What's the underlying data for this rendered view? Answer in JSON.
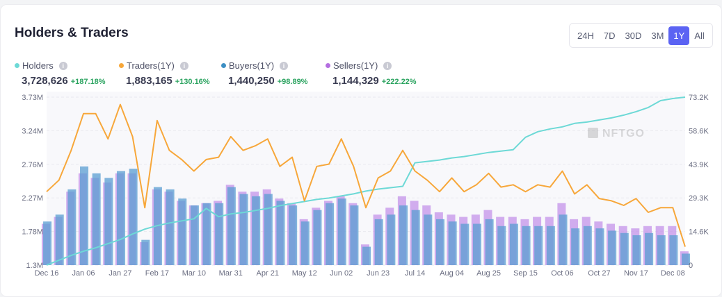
{
  "header": {
    "title": "Holders & Traders"
  },
  "ranges": {
    "options": [
      "24H",
      "7D",
      "30D",
      "3M",
      "1Y",
      "All"
    ],
    "selected": "1Y"
  },
  "stats": [
    {
      "label": "Holders",
      "value": "3,728,626",
      "change": "+187.18%",
      "color": "#6dd9d6"
    },
    {
      "label": "Traders(1Y)",
      "value": "1,883,165",
      "change": "+130.16%",
      "color": "#f7a73a"
    },
    {
      "label": "Buyers(1Y)",
      "value": "1,440,250",
      "change": "+98.89%",
      "color": "#3d8fc4"
    },
    {
      "label": "Sellers(1Y)",
      "value": "1,144,329",
      "change": "+222.22%",
      "color": "#b46ee0"
    }
  ],
  "watermark": "NFTGO",
  "chart_data": {
    "type": "line+bar",
    "x_tick_labels": [
      "Dec 16",
      "Jan 06",
      "Jan 27",
      "Feb 17",
      "Mar 10",
      "Mar 31",
      "Apr 21",
      "May 12",
      "Jun 02",
      "Jun 23",
      "Jul 14",
      "Aug 04",
      "Aug 25",
      "Sep 15",
      "Oct 06",
      "Oct 27",
      "Nov 17",
      "Dec 08"
    ],
    "y_left": {
      "ticks": [
        "1.3M",
        "1.78M",
        "2.27M",
        "2.76M",
        "3.24M",
        "3.73M"
      ],
      "range": [
        1.3,
        3.73
      ],
      "unit": "M"
    },
    "y_right": {
      "ticks": [
        "0",
        "14.6K",
        "29.3K",
        "43.9K",
        "58.6K",
        "73.2K"
      ],
      "range": [
        0,
        73.2
      ],
      "unit": "K"
    },
    "grid": true,
    "x_interval": "weekly",
    "series": [
      {
        "name": "Holders",
        "type": "line",
        "axis": "left",
        "color": "#6dd9d6",
        "values": [
          1.3,
          1.37,
          1.44,
          1.5,
          1.55,
          1.61,
          1.67,
          1.75,
          1.82,
          1.87,
          1.91,
          1.94,
          1.97,
          2.12,
          2.0,
          2.04,
          2.06,
          2.09,
          2.12,
          2.16,
          2.19,
          2.22,
          2.25,
          2.27,
          2.3,
          2.33,
          2.37,
          2.4,
          2.42,
          2.44,
          2.78,
          2.8,
          2.82,
          2.85,
          2.87,
          2.9,
          2.93,
          2.95,
          2.97,
          3.15,
          3.23,
          3.27,
          3.3,
          3.35,
          3.37,
          3.4,
          3.43,
          3.47,
          3.52,
          3.58,
          3.68,
          3.71,
          3.73
        ]
      },
      {
        "name": "Traders(1Y)",
        "type": "line",
        "axis": "right",
        "color": "#f7a73a",
        "values": [
          32,
          37,
          50,
          66,
          66,
          55,
          70,
          56,
          25,
          63,
          50,
          46,
          41,
          46,
          47,
          56,
          50,
          52,
          55,
          43,
          47,
          28,
          43,
          44,
          55,
          43,
          25,
          38,
          41,
          50,
          41,
          37,
          32,
          38,
          32,
          35,
          40,
          34,
          35,
          32,
          35,
          34,
          41,
          31,
          35,
          29,
          28,
          26,
          29,
          23,
          25,
          25,
          8
        ]
      },
      {
        "name": "Buyers(1Y)",
        "type": "bar",
        "axis": "right",
        "color": "#5a9ed1",
        "values": [
          19,
          22,
          33,
          43,
          40,
          38,
          41,
          42,
          11,
          34,
          33,
          29,
          26,
          27,
          27,
          34,
          31,
          30,
          31,
          28,
          26,
          19,
          24,
          27,
          29,
          26,
          8,
          20,
          22,
          26,
          24,
          22,
          20,
          19,
          18,
          18,
          20,
          17,
          18,
          17,
          17,
          17,
          22,
          16,
          17,
          16,
          15,
          14,
          13,
          14,
          13,
          13,
          5
        ]
      },
      {
        "name": "Sellers(1Y)",
        "type": "bar",
        "axis": "right",
        "color": "#c08ce8",
        "values": [
          18,
          21,
          32,
          40,
          38,
          36,
          40,
          40,
          10,
          33,
          32,
          28,
          26,
          27,
          28,
          35,
          32,
          32,
          33,
          29,
          27,
          20,
          25,
          28,
          30,
          27,
          9,
          22,
          25,
          30,
          28,
          26,
          23,
          22,
          21,
          22,
          24,
          21,
          21,
          20,
          21,
          21,
          27,
          20,
          21,
          19,
          18,
          17,
          16,
          17,
          17,
          17,
          6
        ]
      }
    ]
  }
}
